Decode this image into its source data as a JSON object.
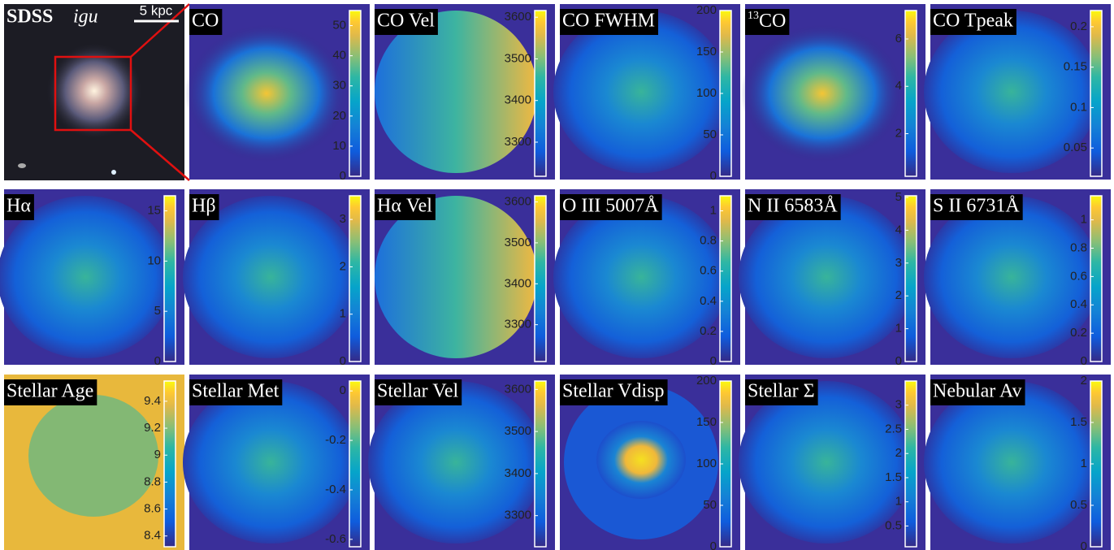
{
  "sdss": {
    "title": "SDSS",
    "title_italic": "igu",
    "scale": "5 kpc"
  },
  "panels": [
    {
      "label": "CO",
      "clim": [
        0,
        55
      ],
      "ticks": [
        0,
        10,
        20,
        30,
        40,
        50
      ]
    },
    {
      "label": "CO Vel",
      "clim": [
        3218,
        3616
      ],
      "ticks": [
        3300,
        3400,
        3500,
        3600
      ]
    },
    {
      "label": "CO FWHM",
      "clim": [
        0,
        200
      ],
      "ticks": [
        0,
        50,
        100,
        150,
        200
      ]
    },
    {
      "label_sup": "13",
      "label": "CO",
      "clim": [
        0.2,
        7.2
      ],
      "ticks": [
        2,
        4,
        6
      ]
    },
    {
      "label": "CO Tpeak",
      "clim": [
        0.015,
        0.22
      ],
      "ticks": [
        0.05,
        0.1,
        0.15,
        0.2
      ]
    },
    {
      "label": "Hα",
      "clim": [
        0,
        16.5
      ],
      "ticks": [
        0,
        5,
        10,
        15
      ]
    },
    {
      "label": "Hβ",
      "clim": [
        0,
        3.5
      ],
      "ticks": [
        0,
        1,
        2,
        3
      ]
    },
    {
      "label": "Hα Vel",
      "clim": [
        3210,
        3615
      ],
      "ticks": [
        3300,
        3400,
        3500,
        3600
      ]
    },
    {
      "label": "O III 5007Å",
      "clim": [
        0,
        1.1
      ],
      "ticks": [
        0,
        0.2,
        0.4,
        0.6,
        0.8,
        1
      ]
    },
    {
      "label": "N II 6583Å",
      "clim": [
        0,
        5.05
      ],
      "ticks": [
        0,
        1,
        2,
        3,
        4,
        5
      ]
    },
    {
      "label": "S II 6731Å",
      "clim": [
        0,
        1.17
      ],
      "ticks": [
        0,
        0.2,
        0.4,
        0.6,
        0.8,
        1
      ]
    },
    {
      "label": "Stellar Age",
      "clim": [
        8.32,
        9.55
      ],
      "ticks": [
        8.4,
        8.6,
        8.8,
        9,
        9.2,
        9.4
      ]
    },
    {
      "label": "Stellar Met",
      "clim": [
        -0.63,
        0.04
      ],
      "ticks": [
        -0.6,
        -0.4,
        -0.2,
        0
      ]
    },
    {
      "label": "Stellar Vel",
      "clim": [
        3226,
        3620
      ],
      "ticks": [
        3300,
        3400,
        3500,
        3600
      ]
    },
    {
      "label": "Stellar Vdisp",
      "clim": [
        0,
        200
      ],
      "ticks": [
        0,
        50,
        100,
        150,
        200
      ]
    },
    {
      "label": "Stellar Σ",
      "clim": [
        0.07,
        3.5
      ],
      "ticks": [
        0.5,
        1,
        1.5,
        2,
        2.5,
        3
      ]
    },
    {
      "label": "Nebular Av",
      "clim": [
        0,
        2
      ],
      "ticks": [
        0,
        0.5,
        1,
        1.5,
        2
      ]
    }
  ]
}
